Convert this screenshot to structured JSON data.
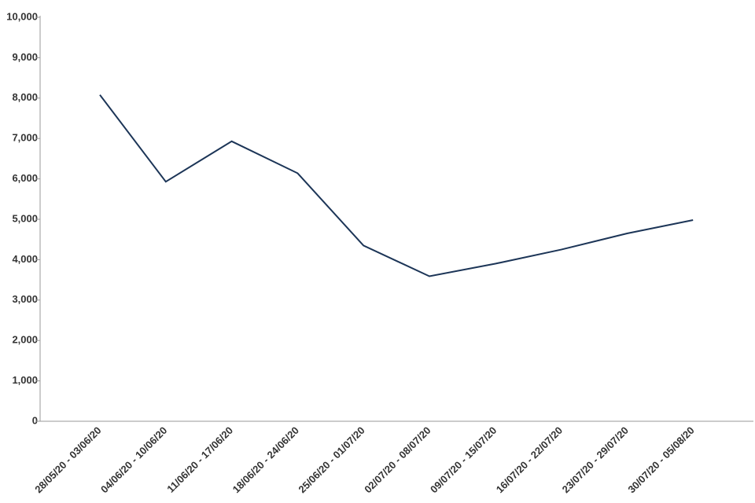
{
  "chart_data": {
    "type": "line",
    "categories": [
      "28/05/20 - 03/06/20",
      "04/06/20 - 10/06/20",
      "11/06/20 - 17/06/20",
      "18/06/20 - 24/06/20",
      "25/06/20 - 01/07/20",
      "02/07/20 - 08/07/20",
      "09/07/20 - 15/07/20",
      "16/07/20 - 22/07/20",
      "23/07/20 - 29/07/20",
      "30/07/20 - 05/08/20"
    ],
    "series": [
      {
        "color": "#1c3557",
        "values": [
          8080,
          5930,
          6930,
          6140,
          4350,
          3590,
          3900,
          4250,
          4650,
          4980
        ]
      }
    ],
    "ylim": [
      0,
      10000
    ],
    "yticks": [
      0,
      {
        "value": 1000,
        "label": "1,000"
      },
      {
        "value": 2000,
        "label": "2,000"
      },
      {
        "value": 3000,
        "label": "3,000"
      },
      {
        "value": 4000,
        "label": "4,000"
      },
      {
        "value": 5000,
        "label": "5,000"
      },
      {
        "value": 6000,
        "label": "6,000"
      },
      {
        "value": 7000,
        "label": "7,000"
      },
      {
        "value": 8000,
        "label": "8,000"
      },
      {
        "value": 9000,
        "label": "9,000"
      },
      {
        "value": 10000,
        "label": "10,000"
      }
    ]
  }
}
